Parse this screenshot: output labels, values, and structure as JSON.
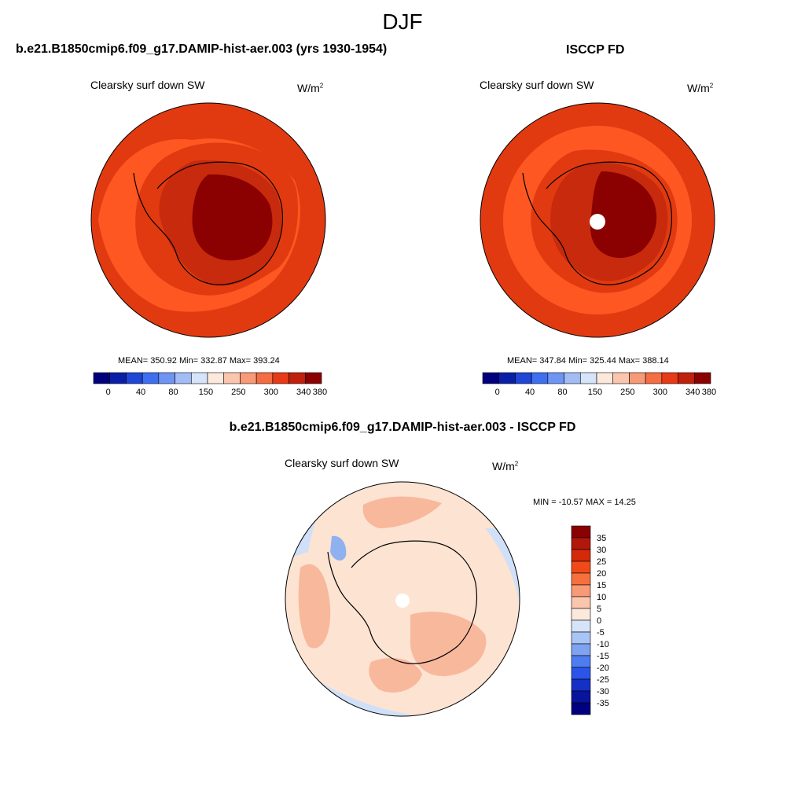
{
  "figure": {
    "season": "DJF",
    "top_left_title": "b.e21.B1850cmip6.f09_g17.DAMIP-hist-aer.003 (yrs 1930-1954)",
    "top_right_title": "ISCCP FD",
    "bottom_title": "b.e21.B1850cmip6.f09_g17.DAMIP-hist-aer.003 - ISCCP FD"
  },
  "palette": {
    "ocean_model": "#e23a10",
    "inner_model": "#ff5722",
    "coast_band": "#c72a0d",
    "ice_core": "#8b0000",
    "diff_base": "#fde3d2",
    "diff_pos": "#f8b89c",
    "diff_neg": "#cfe0f8",
    "diff_neg_strong": "#8fb1ef"
  },
  "chart_data": [
    {
      "type": "heatmap",
      "projection": "south-polar-stereographic",
      "variable": "Clearsky surf down SW",
      "units_base": "W/m",
      "units_exp": "2",
      "stats": {
        "mean": "350.92",
        "min": "332.87",
        "max": "393.24"
      },
      "stats_text": "MEAN= 350.92  Min= 332.87  Max= 393.24",
      "colorbar": {
        "orientation": "horizontal",
        "colors": [
          "#00007f",
          "#0a1fa8",
          "#1f46d6",
          "#3f6ff0",
          "#6f95f4",
          "#a2bdf5",
          "#d6e4fa",
          "#fde9dc",
          "#fbc6ae",
          "#f89a77",
          "#f46d43",
          "#e83a16",
          "#c1200d",
          "#8b0000"
        ],
        "tick_labels": [
          "0",
          "40",
          "80",
          "150",
          "250",
          "300",
          "340",
          "380"
        ]
      }
    },
    {
      "type": "heatmap",
      "projection": "south-polar-stereographic",
      "variable": "Clearsky surf down SW",
      "units_base": "W/m",
      "units_exp": "2",
      "stats": {
        "mean": "347.84",
        "min": "325.44",
        "max": "388.14"
      },
      "stats_text": "MEAN= 347.84  Min= 325.44  Max= 388.14",
      "colorbar": {
        "orientation": "horizontal",
        "colors": [
          "#00007f",
          "#0a1fa8",
          "#1f46d6",
          "#3f6ff0",
          "#6f95f4",
          "#a2bdf5",
          "#d6e4fa",
          "#fde9dc",
          "#fbc6ae",
          "#f89a77",
          "#f46d43",
          "#e83a16",
          "#c1200d",
          "#8b0000"
        ],
        "tick_labels": [
          "0",
          "40",
          "80",
          "150",
          "250",
          "300",
          "340",
          "380"
        ]
      }
    },
    {
      "type": "heatmap",
      "projection": "south-polar-stereographic",
      "variable": "Clearsky surf down SW",
      "units_base": "W/m",
      "units_exp": "2",
      "stats": {
        "min": "-10.57",
        "max": "14.25"
      },
      "stats_text": "MIN = -10.57 MAX =  14.25",
      "colorbar": {
        "orientation": "vertical",
        "colors": [
          "#8b0000",
          "#b2170b",
          "#d22a0a",
          "#f04a18",
          "#f6703e",
          "#f89a77",
          "#fbc6ae",
          "#fde9dc",
          "#d6e4fa",
          "#a9c4f6",
          "#7fa3f1",
          "#4f7def",
          "#2b55e8",
          "#1530c4",
          "#08149c",
          "#00007f"
        ],
        "tick_labels": [
          "35",
          "30",
          "25",
          "20",
          "15",
          "10",
          "5",
          "0",
          "-5",
          "-10",
          "-15",
          "-20",
          "-25",
          "-30",
          "-35"
        ]
      }
    }
  ]
}
